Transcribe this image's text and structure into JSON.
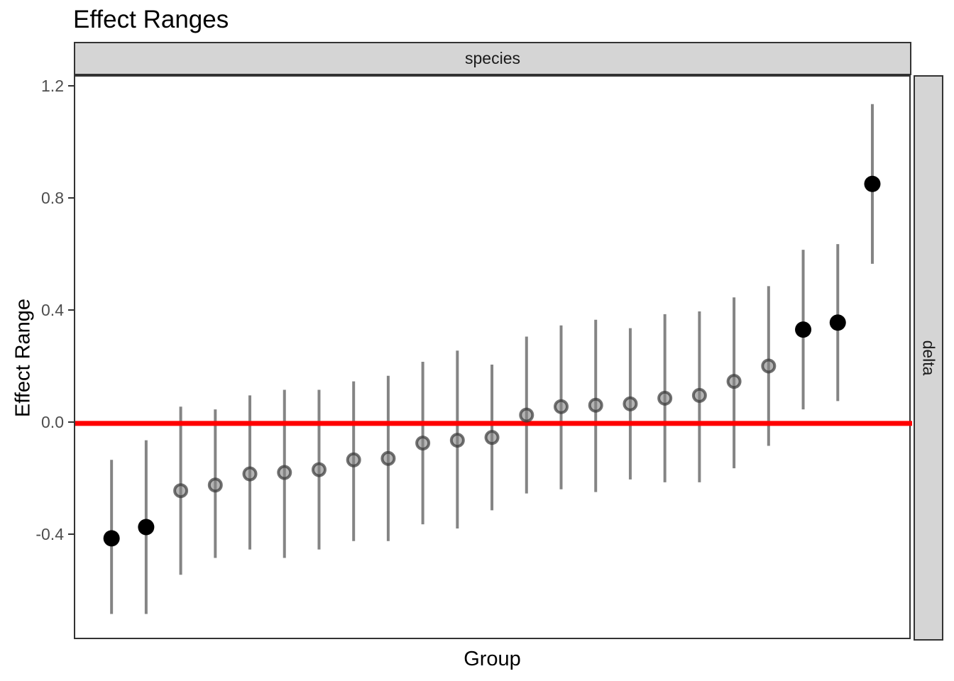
{
  "title": "Effect Ranges",
  "facets": {
    "top_label": "species",
    "right_label": "delta"
  },
  "axes": {
    "y_title": "Effect Range",
    "x_title": "Group",
    "y_ticks": [
      {
        "label": "1.2",
        "value": 1.2
      },
      {
        "label": "0.8",
        "value": 0.8
      },
      {
        "label": "0.4",
        "value": 0.4
      },
      {
        "label": "0.0",
        "value": 0.0
      },
      {
        "label": "-0.4",
        "value": -0.4
      }
    ]
  },
  "colors": {
    "reference_line": "#ff0000",
    "error_bar": "#848484",
    "significant_point": "#000000",
    "point_fill": "rgba(130,130,130,0.60)",
    "point_stroke": "rgba(55,55,55,0.70)",
    "strip_fill": "#d5d5d5",
    "panel_border": "#333333",
    "tick_text": "#4d4d4d"
  },
  "chart_data": {
    "type": "pointrange",
    "title": "Effect Ranges",
    "xlabel": "Group",
    "ylabel": "Effect Range",
    "facet_col": "species",
    "facet_row": "delta",
    "grid": false,
    "reference_line_y": 0.0,
    "ylim": [
      -0.775,
      1.238
    ],
    "x_range": [
      -0.05,
      24.15
    ],
    "y_tick_values": [
      1.2,
      0.8,
      0.4,
      0.0,
      -0.4
    ],
    "x_tick_labels_shown": false,
    "points": [
      {
        "x": 1,
        "y": -0.41,
        "lo": -0.68,
        "hi": -0.13,
        "significant": true
      },
      {
        "x": 2,
        "y": -0.37,
        "lo": -0.68,
        "hi": -0.06,
        "significant": true
      },
      {
        "x": 3,
        "y": -0.24,
        "lo": -0.54,
        "hi": 0.06,
        "significant": false
      },
      {
        "x": 4,
        "y": -0.22,
        "lo": -0.48,
        "hi": 0.05,
        "significant": false
      },
      {
        "x": 5,
        "y": -0.18,
        "lo": -0.45,
        "hi": 0.1,
        "significant": false
      },
      {
        "x": 6,
        "y": -0.175,
        "lo": -0.48,
        "hi": 0.12,
        "significant": false
      },
      {
        "x": 7,
        "y": -0.165,
        "lo": -0.45,
        "hi": 0.12,
        "significant": false
      },
      {
        "x": 8,
        "y": -0.13,
        "lo": -0.42,
        "hi": 0.15,
        "significant": false
      },
      {
        "x": 9,
        "y": -0.125,
        "lo": -0.42,
        "hi": 0.17,
        "significant": false
      },
      {
        "x": 10,
        "y": -0.07,
        "lo": -0.36,
        "hi": 0.22,
        "significant": false
      },
      {
        "x": 11,
        "y": -0.06,
        "lo": -0.375,
        "hi": 0.26,
        "significant": false
      },
      {
        "x": 12,
        "y": -0.05,
        "lo": -0.31,
        "hi": 0.21,
        "significant": false
      },
      {
        "x": 13,
        "y": 0.03,
        "lo": -0.25,
        "hi": 0.31,
        "significant": false
      },
      {
        "x": 14,
        "y": 0.06,
        "lo": -0.235,
        "hi": 0.35,
        "significant": false
      },
      {
        "x": 15,
        "y": 0.065,
        "lo": -0.245,
        "hi": 0.37,
        "significant": false
      },
      {
        "x": 16,
        "y": 0.07,
        "lo": -0.2,
        "hi": 0.34,
        "significant": false
      },
      {
        "x": 17,
        "y": 0.09,
        "lo": -0.21,
        "hi": 0.39,
        "significant": false
      },
      {
        "x": 18,
        "y": 0.1,
        "lo": -0.21,
        "hi": 0.4,
        "significant": false
      },
      {
        "x": 19,
        "y": 0.15,
        "lo": -0.16,
        "hi": 0.45,
        "significant": false
      },
      {
        "x": 20,
        "y": 0.205,
        "lo": -0.08,
        "hi": 0.49,
        "significant": false
      },
      {
        "x": 21,
        "y": 0.335,
        "lo": 0.05,
        "hi": 0.62,
        "significant": true
      },
      {
        "x": 22,
        "y": 0.36,
        "lo": 0.08,
        "hi": 0.64,
        "significant": true
      },
      {
        "x": 23,
        "y": 0.855,
        "lo": 0.57,
        "hi": 1.14,
        "significant": true
      }
    ]
  }
}
